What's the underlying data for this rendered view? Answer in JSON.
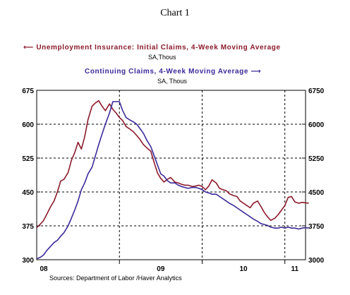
{
  "title": "Chart 1",
  "legend": {
    "initial": {
      "label": "Unemployment Insurance: Initial Claims, 4-Week Moving Average",
      "sub": "SA,Thous"
    },
    "continuing": {
      "label": "Continuing Claims, 4-Week Moving Average",
      "sub": "SA, Thous"
    }
  },
  "source": "Sources:  Department of Labor /Haver Analytics",
  "colors": {
    "initial": "#8b1a2b",
    "continuing": "#3a2a9a"
  },
  "chart_data": {
    "type": "line",
    "title": "Chart 1",
    "x_ticks": [
      "08",
      "09",
      "10",
      "11"
    ],
    "xlim": [
      2008.0,
      2011.25
    ],
    "y_left": {
      "ticks": [
        "675",
        "600",
        "525",
        "450",
        "375",
        "300"
      ],
      "lim": [
        300,
        675
      ]
    },
    "y_right": {
      "ticks": [
        "6750",
        "6000",
        "5250",
        "4500",
        "3750",
        "3000"
      ],
      "lim": [
        3000,
        6750
      ]
    },
    "grid": "dashed",
    "series": [
      {
        "name": "Unemployment Insurance: Initial Claims, 4-Week Moving Average",
        "axis": "left",
        "x": [
          2008.0,
          2008.04,
          2008.08,
          2008.12,
          2008.17,
          2008.21,
          2008.25,
          2008.29,
          2008.33,
          2008.38,
          2008.42,
          2008.46,
          2008.5,
          2008.54,
          2008.58,
          2008.62,
          2008.67,
          2008.71,
          2008.75,
          2008.79,
          2008.83,
          2008.88,
          2008.92,
          2008.96,
          2009.0,
          2009.04,
          2009.08,
          2009.12,
          2009.17,
          2009.21,
          2009.25,
          2009.29,
          2009.33,
          2009.38,
          2009.42,
          2009.46,
          2009.5,
          2009.54,
          2009.58,
          2009.62,
          2009.67,
          2009.71,
          2009.75,
          2009.79,
          2009.83,
          2009.88,
          2009.92,
          2009.96,
          2010.0,
          2010.04,
          2010.08,
          2010.12,
          2010.17,
          2010.21,
          2010.25,
          2010.29,
          2010.33,
          2010.38,
          2010.42,
          2010.46,
          2010.5,
          2010.54,
          2010.58,
          2010.62,
          2010.67,
          2010.71,
          2010.75,
          2010.79,
          2010.83,
          2010.88,
          2010.92,
          2010.96,
          2011.0,
          2011.04,
          2011.08,
          2011.12,
          2011.17,
          2011.21,
          2011.25,
          2011.29
        ],
        "y": [
          371,
          378,
          386,
          400,
          418,
          430,
          450,
          474,
          478,
          493,
          520,
          537,
          560,
          545,
          572,
          610,
          640,
          647,
          652,
          640,
          630,
          645,
          633,
          625,
          615,
          608,
          595,
          590,
          583,
          575,
          566,
          555,
          548,
          540,
          515,
          492,
          480,
          472,
          478,
          482,
          472,
          470,
          467,
          465,
          465,
          462,
          463,
          465,
          462,
          455,
          463,
          477,
          470,
          458,
          455,
          453,
          446,
          442,
          440,
          430,
          425,
          420,
          415,
          425,
          430,
          418,
          405,
          395,
          387,
          392,
          400,
          410,
          420,
          438,
          440,
          428,
          425,
          427,
          426,
          425
        ]
      },
      {
        "name": "Continuing Claims, 4-Week Moving Average",
        "axis": "right",
        "x": [
          2008.0,
          2008.04,
          2008.08,
          2008.12,
          2008.17,
          2008.21,
          2008.25,
          2008.29,
          2008.33,
          2008.38,
          2008.42,
          2008.46,
          2008.5,
          2008.54,
          2008.58,
          2008.62,
          2008.67,
          2008.71,
          2008.75,
          2008.79,
          2008.83,
          2008.88,
          2008.92,
          2008.96,
          2009.0,
          2009.04,
          2009.08,
          2009.12,
          2009.17,
          2009.21,
          2009.25,
          2009.29,
          2009.33,
          2009.38,
          2009.42,
          2009.46,
          2009.5,
          2009.54,
          2009.58,
          2009.62,
          2009.67,
          2009.71,
          2009.75,
          2009.79,
          2009.83,
          2009.88,
          2009.92,
          2009.96,
          2010.0,
          2010.04,
          2010.08,
          2010.12,
          2010.17,
          2010.21,
          2010.25,
          2010.29,
          2010.33,
          2010.38,
          2010.42,
          2010.46,
          2010.5,
          2010.54,
          2010.58,
          2010.62,
          2010.67,
          2010.71,
          2010.75,
          2010.79,
          2010.83,
          2010.88,
          2010.92,
          2010.96,
          2011.0,
          2011.04,
          2011.08,
          2011.12,
          2011.17,
          2011.21,
          2011.25,
          2011.29
        ],
        "y": [
          3020,
          3050,
          3100,
          3200,
          3300,
          3380,
          3430,
          3520,
          3600,
          3750,
          3920,
          4100,
          4300,
          4550,
          4700,
          4900,
          5050,
          5300,
          5550,
          5780,
          6000,
          6250,
          6500,
          6500,
          6500,
          6300,
          6150,
          6100,
          6050,
          6000,
          5900,
          5800,
          5650,
          5500,
          5300,
          5100,
          4900,
          4850,
          4750,
          4700,
          4700,
          4650,
          4620,
          4600,
          4580,
          4600,
          4600,
          4580,
          4550,
          4500,
          4480,
          4450,
          4450,
          4400,
          4350,
          4300,
          4250,
          4200,
          4150,
          4100,
          4050,
          4000,
          3950,
          3900,
          3850,
          3800,
          3780,
          3760,
          3720,
          3700,
          3700,
          3720,
          3700,
          3720,
          3700,
          3700,
          3680,
          3700,
          3710,
          3700
        ]
      }
    ]
  }
}
